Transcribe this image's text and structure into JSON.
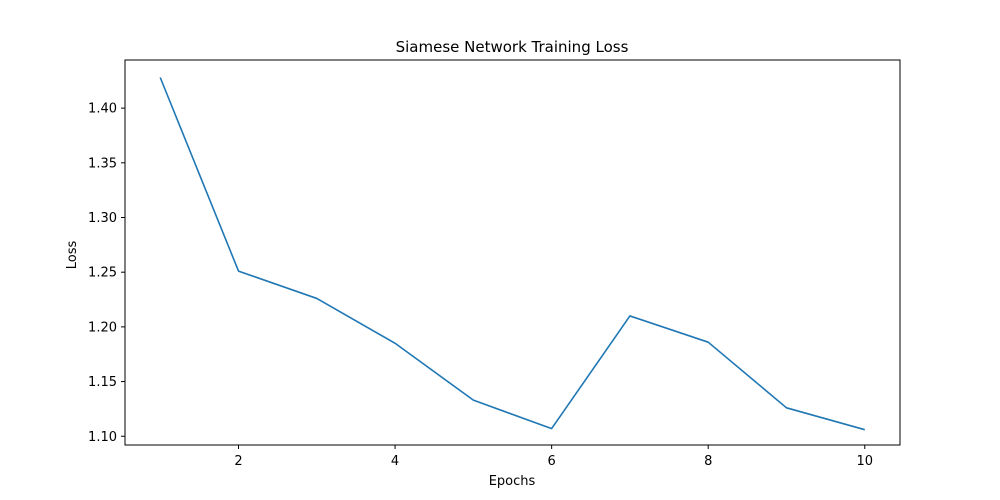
{
  "chart_data": {
    "type": "line",
    "title": "Siamese Network Training Loss",
    "xlabel": "Epochs",
    "ylabel": "Loss",
    "xlim": [
      0.55,
      10.45
    ],
    "ylim": [
      1.092,
      1.444
    ],
    "xticks": [
      2,
      4,
      6,
      8,
      10
    ],
    "xtick_labels": [
      "2",
      "4",
      "6",
      "8",
      "10"
    ],
    "yticks": [
      1.1,
      1.15,
      1.2,
      1.25,
      1.3,
      1.35,
      1.4
    ],
    "ytick_labels": [
      "1.10",
      "1.15",
      "1.20",
      "1.25",
      "1.30",
      "1.35",
      "1.40"
    ],
    "grid": false,
    "legend": "none",
    "series": [
      {
        "x": [
          1,
          2,
          3,
          4,
          5,
          6,
          7,
          8,
          9,
          10
        ],
        "values": [
          1.428,
          1.251,
          1.226,
          1.185,
          1.133,
          1.107,
          1.21,
          1.186,
          1.126,
          1.106
        ],
        "color": "#1f77b4"
      }
    ]
  }
}
